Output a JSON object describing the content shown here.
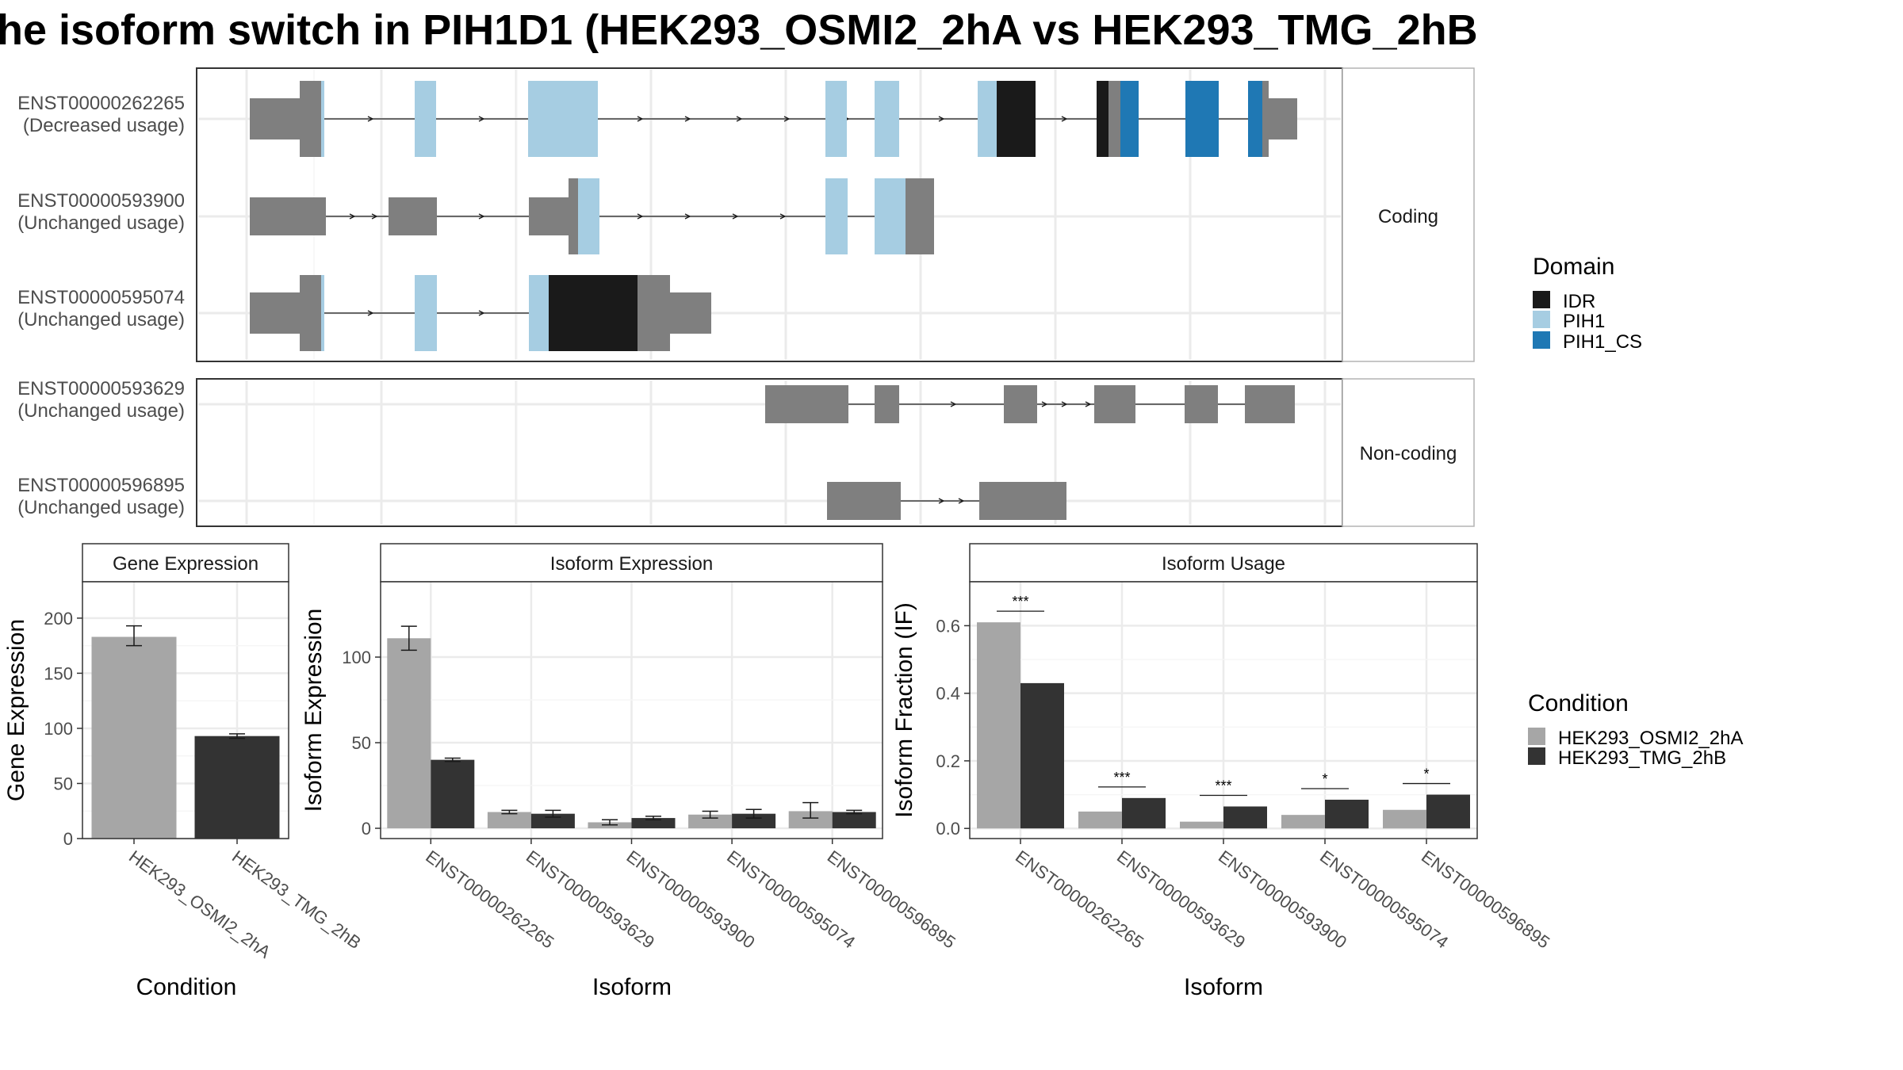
{
  "title": "he isoform switch in PIH1D1 (HEK293_OSMI2_2hA vs HEK293_TMG_2hB",
  "colors": {
    "exon": "#7f7f7f",
    "IDR": "#1a1a1a",
    "PIH1": "#a6cde2",
    "PIH1_CS": "#1f78b4",
    "cond1": "#a6a6a6",
    "cond2": "#333333"
  },
  "structure": {
    "groups": [
      "Coding",
      "Non-coding"
    ],
    "transcripts": [
      {
        "id": "ENST00000262265",
        "usage": "(Decreased usage)",
        "group": "Coding"
      },
      {
        "id": "ENST00000593900",
        "usage": "(Unchanged usage)",
        "group": "Coding"
      },
      {
        "id": "ENST00000595074",
        "usage": "(Unchanged usage)",
        "group": "Coding"
      },
      {
        "id": "ENST00000593629",
        "usage": "(Unchanged usage)",
        "group": "Non-coding"
      },
      {
        "id": "ENST00000596895",
        "usage": "(Unchanged usage)",
        "group": "Non-coding"
      }
    ]
  },
  "legend_domain": {
    "title": "Domain",
    "items": [
      "IDR",
      "PIH1",
      "PIH1_CS"
    ]
  },
  "legend_condition": {
    "title": "Condition",
    "items": [
      "HEK293_OSMI2_2hA",
      "HEK293_TMG_2hB"
    ]
  },
  "chart_data": [
    {
      "type": "bar",
      "title": "Gene Expression",
      "xlabel": "Condition",
      "ylabel": "Gene Expression",
      "categories": [
        "HEK293_OSMI2_2hA",
        "HEK293_TMG_2hB"
      ],
      "values": [
        183,
        93
      ],
      "errors": [
        [
          175,
          193
        ],
        [
          91,
          95
        ]
      ],
      "yticks": [
        0,
        50,
        100,
        150,
        200
      ],
      "ylim": [
        0,
        233
      ]
    },
    {
      "type": "bar",
      "title": "Isoform Expression",
      "xlabel": "Isoform",
      "ylabel": "Isoform Expression",
      "categories": [
        "ENST00000262265",
        "ENST00000593629",
        "ENST00000593900",
        "ENST00000595074",
        "ENST00000596895"
      ],
      "series": [
        {
          "name": "HEK293_OSMI2_2hA",
          "values": [
            111,
            9.5,
            3.5,
            8,
            10
          ],
          "errors": [
            [
              104,
              118
            ],
            [
              8.5,
              10.5
            ],
            [
              2,
              5
            ],
            [
              6,
              10
            ],
            [
              6,
              15
            ]
          ]
        },
        {
          "name": "HEK293_TMG_2hB",
          "values": [
            40,
            8.5,
            6,
            8.5,
            9.5
          ],
          "errors": [
            [
              39,
              41
            ],
            [
              6.5,
              10.5
            ],
            [
              5,
              7
            ],
            [
              6,
              11
            ],
            [
              8.5,
              10.5
            ]
          ]
        }
      ],
      "yticks": [
        0,
        50,
        100
      ],
      "ylim": [
        -6,
        144
      ]
    },
    {
      "type": "bar",
      "title": "Isoform Usage",
      "xlabel": "Isoform",
      "ylabel": "Isoform Fraction (IF)",
      "categories": [
        "ENST00000262265",
        "ENST00000593629",
        "ENST00000593900",
        "ENST00000595074",
        "ENST00000596895"
      ],
      "series": [
        {
          "name": "HEK293_OSMI2_2hA",
          "values": [
            0.61,
            0.05,
            0.02,
            0.04,
            0.055
          ]
        },
        {
          "name": "HEK293_TMG_2hB",
          "values": [
            0.43,
            0.09,
            0.065,
            0.085,
            0.1
          ]
        }
      ],
      "significance": [
        "***",
        "***",
        "***",
        "*",
        "*"
      ],
      "yticks": [
        0.0,
        0.2,
        0.4,
        0.6
      ],
      "ytick_labels": [
        "0.0",
        "0.2",
        "0.4",
        "0.6"
      ],
      "ylim": [
        -0.03,
        0.73
      ]
    }
  ]
}
